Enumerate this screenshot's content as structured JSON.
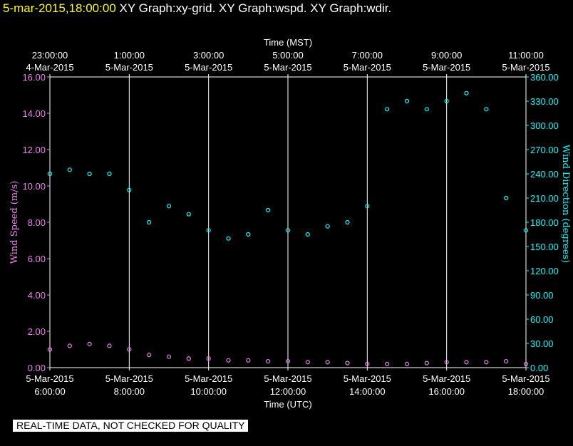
{
  "header": {
    "timestamp": "5-mar-2015,18:00:00",
    "titles": "XY Graph:xy-grid.  XY Graph:wspd.  XY Graph:wdir."
  },
  "footer_note": "REAL-TIME DATA, NOT CHECKED FOR QUALITY",
  "colors": {
    "timestamp": "#ffff00",
    "wind_speed": "#ee82ee",
    "wind_direction": "#00ffff",
    "grid": "#ffffff"
  },
  "chart_data": {
    "type": "scatter",
    "grid": true,
    "top_axis": {
      "label": "Time (MST)",
      "ticks": [
        {
          "time": "23:00:00",
          "date": "4-Mar-2015"
        },
        {
          "time": "1:00:00",
          "date": "5-Mar-2015"
        },
        {
          "time": "3:00:00",
          "date": "5-Mar-2015"
        },
        {
          "time": "5:00:00",
          "date": "5-Mar-2015"
        },
        {
          "time": "7:00:00",
          "date": "5-Mar-2015"
        },
        {
          "time": "9:00:00",
          "date": "5-Mar-2015"
        },
        {
          "time": "11:00:00",
          "date": "5-Mar-2015"
        }
      ]
    },
    "bottom_axis": {
      "label": "Time (UTC)",
      "ticks": [
        {
          "date": "5-Mar-2015",
          "time": "6:00:00"
        },
        {
          "date": "5-Mar-2015",
          "time": "8:00:00"
        },
        {
          "date": "5-Mar-2015",
          "time": "10:00:00"
        },
        {
          "date": "5-Mar-2015",
          "time": "12:00:00"
        },
        {
          "date": "5-Mar-2015",
          "time": "14:00:00"
        },
        {
          "date": "5-Mar-2015",
          "time": "16:00:00"
        },
        {
          "date": "5-Mar-2015",
          "time": "18:00:00"
        }
      ],
      "range_utc_hours": [
        6,
        18
      ]
    },
    "left_axis": {
      "label": "Wind Speed (m/s)",
      "ylim": [
        0,
        16
      ],
      "ticks": [
        "0.00",
        "2.00",
        "4.00",
        "6.00",
        "8.00",
        "10.00",
        "12.00",
        "14.00",
        "16.00"
      ]
    },
    "right_axis": {
      "label": "Wind Direction (degrees)",
      "ylim": [
        0,
        360
      ],
      "ticks": [
        "0.00",
        "30.00",
        "60.00",
        "90.00",
        "120.00",
        "150.00",
        "180.00",
        "210.00",
        "240.00",
        "270.00",
        "300.00",
        "330.00",
        "360.00"
      ]
    },
    "series": [
      {
        "name": "wspd",
        "axis": "left",
        "color": "#ee82ee",
        "x": [
          6.0,
          6.5,
          7.0,
          7.5,
          8.0,
          8.5,
          9.0,
          9.5,
          10.0,
          10.5,
          11.0,
          11.5,
          12.0,
          12.5,
          13.0,
          13.5,
          14.0,
          14.5,
          15.0,
          15.5,
          16.0,
          16.5,
          17.0,
          17.5,
          18.0
        ],
        "values": [
          1.0,
          1.2,
          1.3,
          1.2,
          1.0,
          0.7,
          0.6,
          0.5,
          0.5,
          0.4,
          0.4,
          0.35,
          0.35,
          0.3,
          0.3,
          0.25,
          0.2,
          0.2,
          0.2,
          0.25,
          0.3,
          0.3,
          0.3,
          0.35,
          0.2
        ]
      },
      {
        "name": "wdir",
        "axis": "right",
        "color": "#00ffff",
        "x": [
          6.0,
          6.5,
          7.0,
          7.5,
          8.0,
          8.5,
          9.0,
          9.5,
          10.0,
          10.5,
          11.0,
          11.5,
          12.0,
          12.5,
          13.0,
          13.5,
          14.0,
          14.5,
          15.0,
          15.5,
          16.0,
          16.5,
          17.0,
          17.5,
          18.0
        ],
        "values": [
          240,
          245,
          240,
          240,
          220,
          180,
          200,
          190,
          170,
          160,
          165,
          195,
          170,
          165,
          175,
          180,
          200,
          320,
          330,
          320,
          330,
          340,
          320,
          210,
          170
        ]
      }
    ]
  }
}
